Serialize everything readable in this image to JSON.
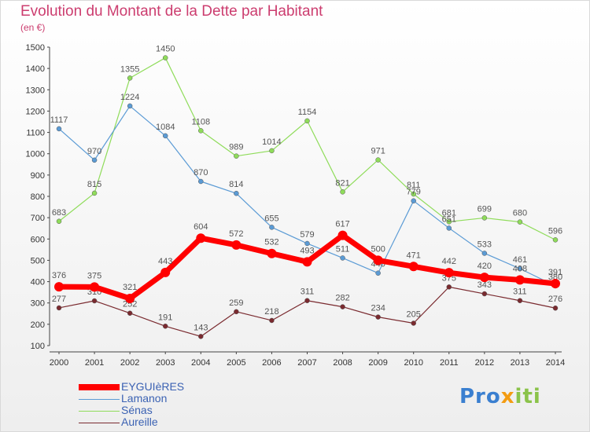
{
  "title": "Evolution du Montant de la Dette par Habitant",
  "subtitle": "(en €)",
  "chart_data": {
    "type": "line",
    "x": [
      "2000",
      "2001",
      "2002",
      "2003",
      "2004",
      "2005",
      "2006",
      "2007",
      "2008",
      "2009",
      "2010",
      "2011",
      "2012",
      "2013",
      "2014"
    ],
    "ylim": [
      100,
      1500
    ],
    "yticks": [
      100,
      200,
      300,
      400,
      500,
      600,
      700,
      800,
      900,
      1000,
      1100,
      1200,
      1300,
      1400,
      1500
    ],
    "grid": false,
    "legend_position": "bottom-left",
    "series": [
      {
        "name": "EYGUIèRES",
        "color": "#ff0000",
        "values": [
          376,
          375,
          321,
          443,
          604,
          572,
          532,
          493,
          617,
          500,
          471,
          442,
          420,
          408,
          391
        ]
      },
      {
        "name": "Lamanon",
        "color": "#5b9bd5",
        "values": [
          1117,
          970,
          1224,
          1084,
          870,
          814,
          655,
          579,
          511,
          440,
          779,
          651,
          533,
          461,
          380
        ]
      },
      {
        "name": "Sénas",
        "color": "#8fdc5a",
        "values": [
          683,
          815,
          1355,
          1450,
          1108,
          989,
          1014,
          1154,
          821,
          971,
          811,
          681,
          699,
          680,
          596
        ]
      },
      {
        "name": "Aureille",
        "color": "#7a2a2f",
        "values": [
          277,
          310,
          252,
          191,
          143,
          259,
          218,
          311,
          282,
          234,
          205,
          375,
          343,
          311,
          276
        ]
      }
    ]
  },
  "legend": {
    "items": [
      "EYGUIèRES",
      "Lamanon",
      "Sénas",
      "Aureille"
    ]
  },
  "logo": {
    "text_parts": [
      "Pro",
      "x",
      "iti"
    ]
  }
}
